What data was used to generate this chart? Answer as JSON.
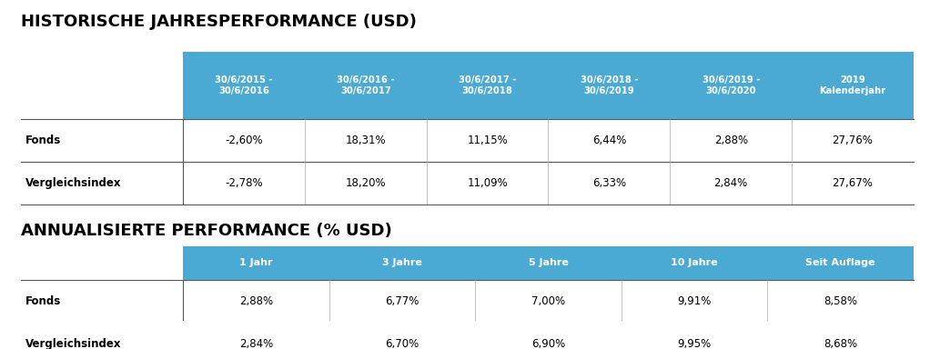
{
  "title1": "HISTORISCHE JAHRESPERFORMANCE (USD)",
  "title2": "ANNUALISIERTE PERFORMANCE (% USD)",
  "header_color": "#4BAAD3",
  "header_text_color": "#FFFFFF",
  "row_label_color": "#000000",
  "bg_color": "#FFFFFF",
  "table1_headers": [
    "30/6/2015 -\n30/6/2016",
    "30/6/2016 -\n30/6/2017",
    "30/6/2017 -\n30/6/2018",
    "30/6/2018 -\n30/6/2019",
    "30/6/2019 -\n30/6/2020",
    "2019\nKalenderjahr"
  ],
  "table1_row_labels": [
    "Fonds",
    "Vergleichsindex"
  ],
  "table1_data": [
    [
      "-2,60%",
      "18,31%",
      "11,15%",
      "6,44%",
      "2,88%",
      "27,76%"
    ],
    [
      "-2,78%",
      "18,20%",
      "11,09%",
      "6,33%",
      "2,84%",
      "27,67%"
    ]
  ],
  "table2_headers": [
    "1 Jahr",
    "3 Jahre",
    "5 Jahre",
    "10 Jahre",
    "Seit Auflage"
  ],
  "table2_row_labels": [
    "Fonds",
    "Vergleichsindex"
  ],
  "table2_data": [
    [
      "2,88%",
      "6,77%",
      "7,00%",
      "9,91%",
      "8,58%"
    ],
    [
      "2,84%",
      "6,70%",
      "6,90%",
      "9,95%",
      "8,68%"
    ]
  ]
}
